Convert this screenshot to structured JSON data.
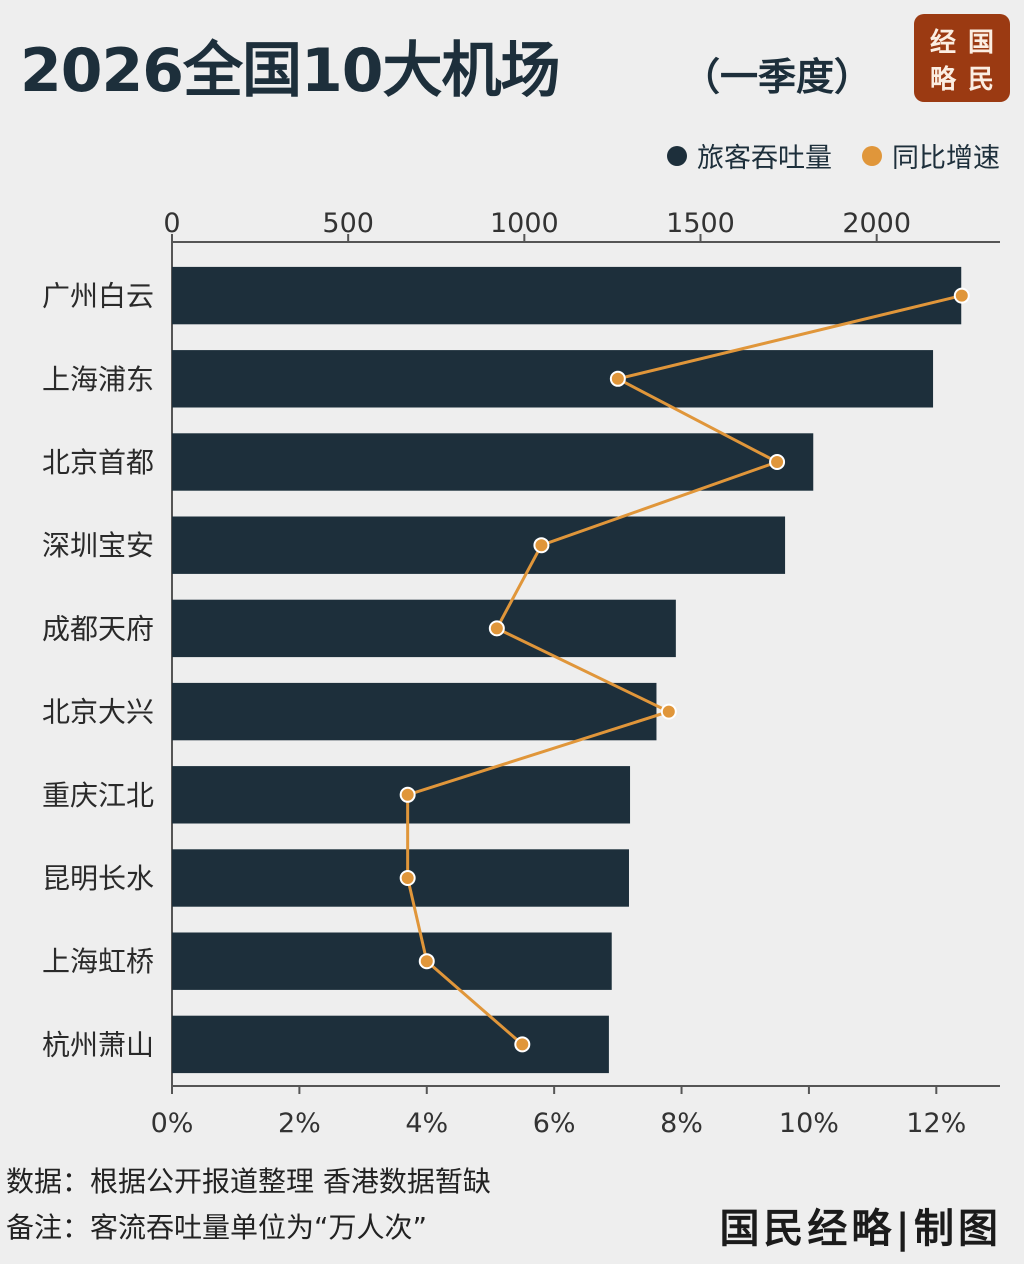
{
  "header": {
    "title": "2026全国10大机场",
    "subtitle": "（一季度）"
  },
  "brand": {
    "badge_chars": [
      "经",
      "国",
      "略",
      "民"
    ],
    "badge_color": "#9b3a12"
  },
  "legend": {
    "items": [
      {
        "label": "旅客吞吐量",
        "color": "#1d2f3b"
      },
      {
        "label": "同比增速",
        "color": "#e0963a"
      }
    ]
  },
  "chart_data": {
    "type": "bar",
    "orientation": "horizontal",
    "categories": [
      "广州白云",
      "上海浦东",
      "北京首都",
      "深圳宝安",
      "成都天府",
      "北京大兴",
      "重庆江北",
      "昆明长水",
      "上海虹桥",
      "杭州萧山"
    ],
    "series": [
      {
        "name": "旅客吞吐量",
        "type": "bar",
        "axis": "top",
        "color": "#1d2f3b",
        "values": [
          2240,
          2160,
          1820,
          1740,
          1430,
          1375,
          1300,
          1297,
          1248,
          1240
        ]
      },
      {
        "name": "同比增速",
        "type": "line",
        "axis": "bottom",
        "color": "#e0963a",
        "values": [
          12.4,
          7.0,
          9.5,
          5.8,
          5.1,
          7.8,
          3.7,
          3.7,
          4.0,
          5.5
        ]
      }
    ],
    "top_axis": {
      "ticks": [
        "0",
        "500",
        "1000",
        "1500",
        "2000"
      ],
      "range": [
        0,
        2350
      ]
    },
    "bottom_axis": {
      "ticks": [
        "0%",
        "2%",
        "4%",
        "6%",
        "8%",
        "10%",
        "12%"
      ],
      "range": [
        0,
        13
      ]
    },
    "grid": false,
    "legend_position": "top-right"
  },
  "footer": {
    "source": "数据：根据公开报道整理 香港数据暂缺",
    "note": "备注：客流吞吐量单位为“万人次”",
    "credit": "国民经略|制图"
  }
}
